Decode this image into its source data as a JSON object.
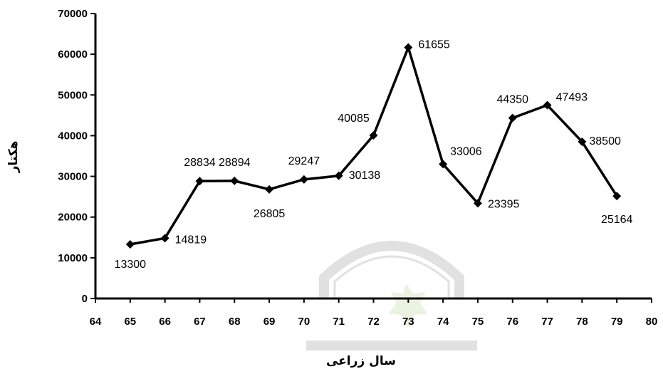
{
  "chart_data": {
    "type": "line",
    "xlabel": "سال زراعی",
    "ylabel": "هکتار",
    "xlim": [
      64,
      80
    ],
    "ylim": [
      0,
      70000
    ],
    "x_ticks": [
      "64",
      "65",
      "66",
      "67",
      "68",
      "69",
      "70",
      "71",
      "72",
      "73",
      "74",
      "75",
      "76",
      "77",
      "78",
      "79",
      "80"
    ],
    "y_ticks": [
      "0",
      "10000",
      "20000",
      "30000",
      "40000",
      "50000",
      "60000",
      "70000"
    ],
    "grid": false,
    "legend": "none",
    "colors": {
      "line": "#000000",
      "marker": "#000000",
      "watermark": "#c9c9c9",
      "watermark_star": "#d9e8cc"
    },
    "series": [
      {
        "x": [
          65,
          66,
          67,
          68,
          69,
          70,
          71,
          72,
          73,
          74,
          75,
          76,
          77,
          78,
          79
        ],
        "values": [
          13300,
          14819,
          28834,
          28894,
          26805,
          29247,
          30138,
          40085,
          61655,
          33006,
          23395,
          44350,
          47493,
          38500,
          25164
        ],
        "labels": [
          "13300",
          "14819",
          "28834",
          "28894",
          "26805",
          "29247",
          "30138",
          "40085",
          "61655",
          "33006",
          "23395",
          "44350",
          "47493",
          "38500",
          "25164"
        ]
      }
    ]
  }
}
